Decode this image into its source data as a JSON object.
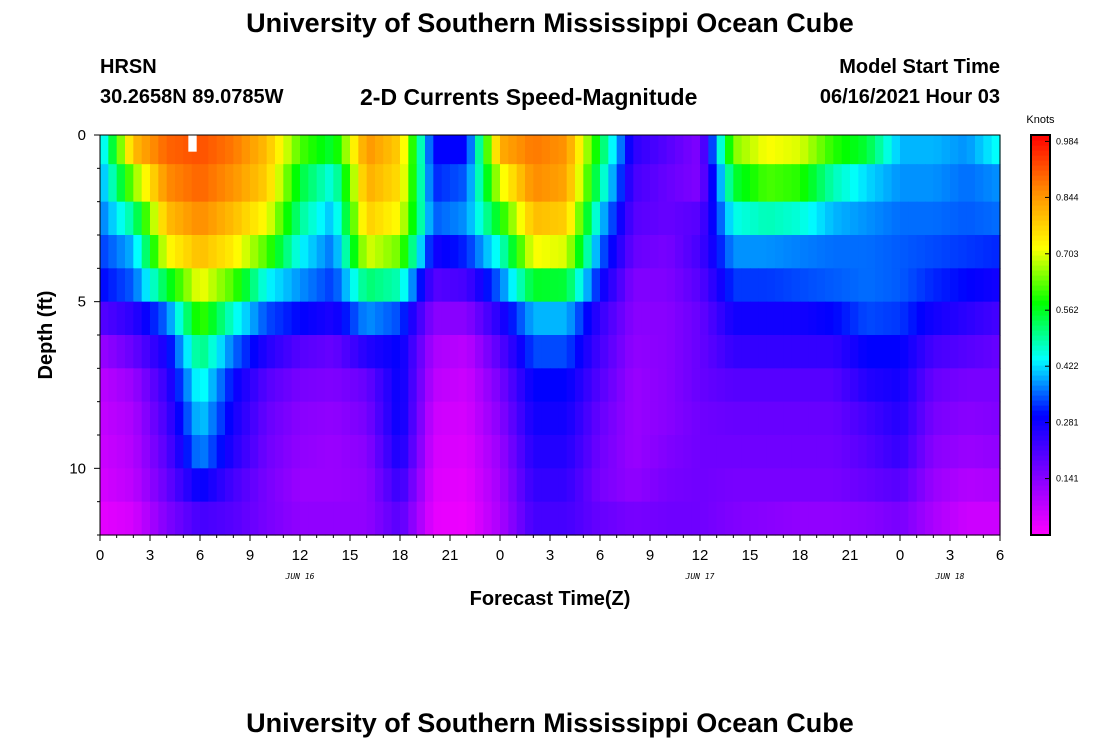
{
  "header": {
    "title": "University of Southern Mississippi Ocean Cube",
    "station": "HRSN",
    "coordinates": "30.2658N  89.0785W",
    "subtitle": "2-D Currents Speed-Magnitude",
    "model_start_label": "Model Start Time",
    "model_start_value": "06/16/2021 Hour 03"
  },
  "footer": {
    "title": "University of Southern Mississippi Ocean Cube"
  },
  "chart_data": {
    "type": "heatmap",
    "title": "2-D Currents Speed-Magnitude",
    "xlabel": "Forecast Time(Z)",
    "ylabel": "Depth (ft)",
    "x_ticks": [
      "0",
      "3",
      "6",
      "9",
      "12",
      "15",
      "18",
      "21",
      "0",
      "3",
      "6",
      "9",
      "12",
      "15",
      "18",
      "21",
      "0",
      "3",
      "6"
    ],
    "x_range_hours": [
      0,
      54
    ],
    "date_labels": [
      {
        "label": "JUN 16",
        "hour": 12
      },
      {
        "label": "JUN 17",
        "hour": 36
      },
      {
        "label": "JUN 18",
        "hour": 51
      }
    ],
    "y_ticks": [
      "0",
      "5",
      "10"
    ],
    "y_range_ft": [
      0,
      12
    ],
    "colorbar": {
      "title": "Knots",
      "tick_labels": [
        "0.984",
        "0.844",
        "0.703",
        "0.562",
        "0.422",
        "0.281",
        "0.141"
      ],
      "range": [
        0.0,
        1.0
      ]
    },
    "depth_levels_ft": [
      0.25,
      1.5,
      2.5,
      3.5,
      4.5,
      5.5,
      6.5,
      7.5,
      8.5,
      9.5,
      10.5,
      11.5
    ],
    "grid": {
      "hours": [
        0,
        2,
        4,
        6,
        8,
        10,
        12,
        14,
        16,
        18,
        20,
        22,
        24,
        26,
        28,
        30,
        32,
        34,
        36,
        38,
        40,
        42,
        44,
        46,
        48,
        50,
        52,
        54
      ],
      "speed_knots": [
        [
          0.4,
          0.8,
          0.9,
          0.92,
          0.88,
          0.8,
          0.62,
          0.55,
          0.85,
          0.78,
          0.3,
          0.3,
          0.82,
          0.88,
          0.85,
          0.55,
          0.25,
          0.2,
          0.15,
          0.65,
          0.72,
          0.7,
          0.6,
          0.55,
          0.4,
          0.4,
          0.38,
          0.45
        ],
        [
          0.38,
          0.65,
          0.86,
          0.9,
          0.85,
          0.78,
          0.55,
          0.45,
          0.82,
          0.76,
          0.32,
          0.35,
          0.7,
          0.86,
          0.83,
          0.5,
          0.22,
          0.18,
          0.15,
          0.55,
          0.62,
          0.6,
          0.48,
          0.42,
          0.38,
          0.38,
          0.36,
          0.38
        ],
        [
          0.36,
          0.5,
          0.8,
          0.86,
          0.8,
          0.72,
          0.5,
          0.4,
          0.78,
          0.72,
          0.35,
          0.38,
          0.58,
          0.8,
          0.78,
          0.42,
          0.2,
          0.18,
          0.2,
          0.45,
          0.48,
          0.46,
          0.4,
          0.38,
          0.36,
          0.36,
          0.35,
          0.36
        ],
        [
          0.33,
          0.4,
          0.72,
          0.8,
          0.74,
          0.62,
          0.44,
          0.36,
          0.7,
          0.64,
          0.28,
          0.32,
          0.46,
          0.72,
          0.7,
          0.36,
          0.18,
          0.16,
          0.22,
          0.38,
          0.38,
          0.37,
          0.36,
          0.36,
          0.35,
          0.34,
          0.33,
          0.32
        ],
        [
          0.3,
          0.35,
          0.55,
          0.72,
          0.62,
          0.44,
          0.38,
          0.33,
          0.52,
          0.48,
          0.2,
          0.22,
          0.36,
          0.56,
          0.55,
          0.3,
          0.15,
          0.15,
          0.2,
          0.33,
          0.33,
          0.34,
          0.35,
          0.36,
          0.35,
          0.32,
          0.3,
          0.28
        ],
        [
          0.2,
          0.25,
          0.36,
          0.62,
          0.46,
          0.34,
          0.3,
          0.27,
          0.38,
          0.34,
          0.14,
          0.14,
          0.26,
          0.4,
          0.4,
          0.24,
          0.14,
          0.14,
          0.18,
          0.28,
          0.28,
          0.28,
          0.3,
          0.34,
          0.33,
          0.28,
          0.25,
          0.22
        ],
        [
          0.12,
          0.18,
          0.28,
          0.52,
          0.36,
          0.26,
          0.2,
          0.18,
          0.26,
          0.3,
          0.1,
          0.08,
          0.2,
          0.34,
          0.34,
          0.22,
          0.13,
          0.14,
          0.18,
          0.24,
          0.24,
          0.24,
          0.24,
          0.3,
          0.3,
          0.22,
          0.2,
          0.18
        ],
        [
          0.08,
          0.12,
          0.24,
          0.46,
          0.3,
          0.2,
          0.16,
          0.15,
          0.18,
          0.3,
          0.08,
          0.06,
          0.16,
          0.3,
          0.3,
          0.2,
          0.12,
          0.14,
          0.18,
          0.2,
          0.2,
          0.2,
          0.2,
          0.26,
          0.28,
          0.18,
          0.16,
          0.16
        ],
        [
          0.07,
          0.1,
          0.22,
          0.42,
          0.28,
          0.18,
          0.14,
          0.13,
          0.16,
          0.3,
          0.06,
          0.05,
          0.14,
          0.28,
          0.28,
          0.18,
          0.12,
          0.14,
          0.17,
          0.18,
          0.18,
          0.18,
          0.18,
          0.22,
          0.26,
          0.16,
          0.14,
          0.15
        ],
        [
          0.06,
          0.09,
          0.2,
          0.38,
          0.26,
          0.17,
          0.13,
          0.12,
          0.14,
          0.28,
          0.05,
          0.04,
          0.12,
          0.26,
          0.26,
          0.17,
          0.12,
          0.15,
          0.17,
          0.17,
          0.17,
          0.17,
          0.17,
          0.2,
          0.24,
          0.14,
          0.12,
          0.13
        ],
        [
          0.05,
          0.08,
          0.18,
          0.3,
          0.22,
          0.16,
          0.12,
          0.12,
          0.13,
          0.24,
          0.04,
          0.03,
          0.11,
          0.24,
          0.24,
          0.16,
          0.13,
          0.16,
          0.17,
          0.16,
          0.16,
          0.16,
          0.16,
          0.18,
          0.2,
          0.12,
          0.09,
          0.1
        ],
        [
          0.03,
          0.05,
          0.15,
          0.22,
          0.2,
          0.16,
          0.13,
          0.13,
          0.13,
          0.2,
          0.03,
          0.02,
          0.1,
          0.22,
          0.22,
          0.18,
          0.16,
          0.17,
          0.17,
          0.15,
          0.14,
          0.13,
          0.13,
          0.14,
          0.16,
          0.1,
          0.06,
          0.06
        ]
      ]
    }
  }
}
